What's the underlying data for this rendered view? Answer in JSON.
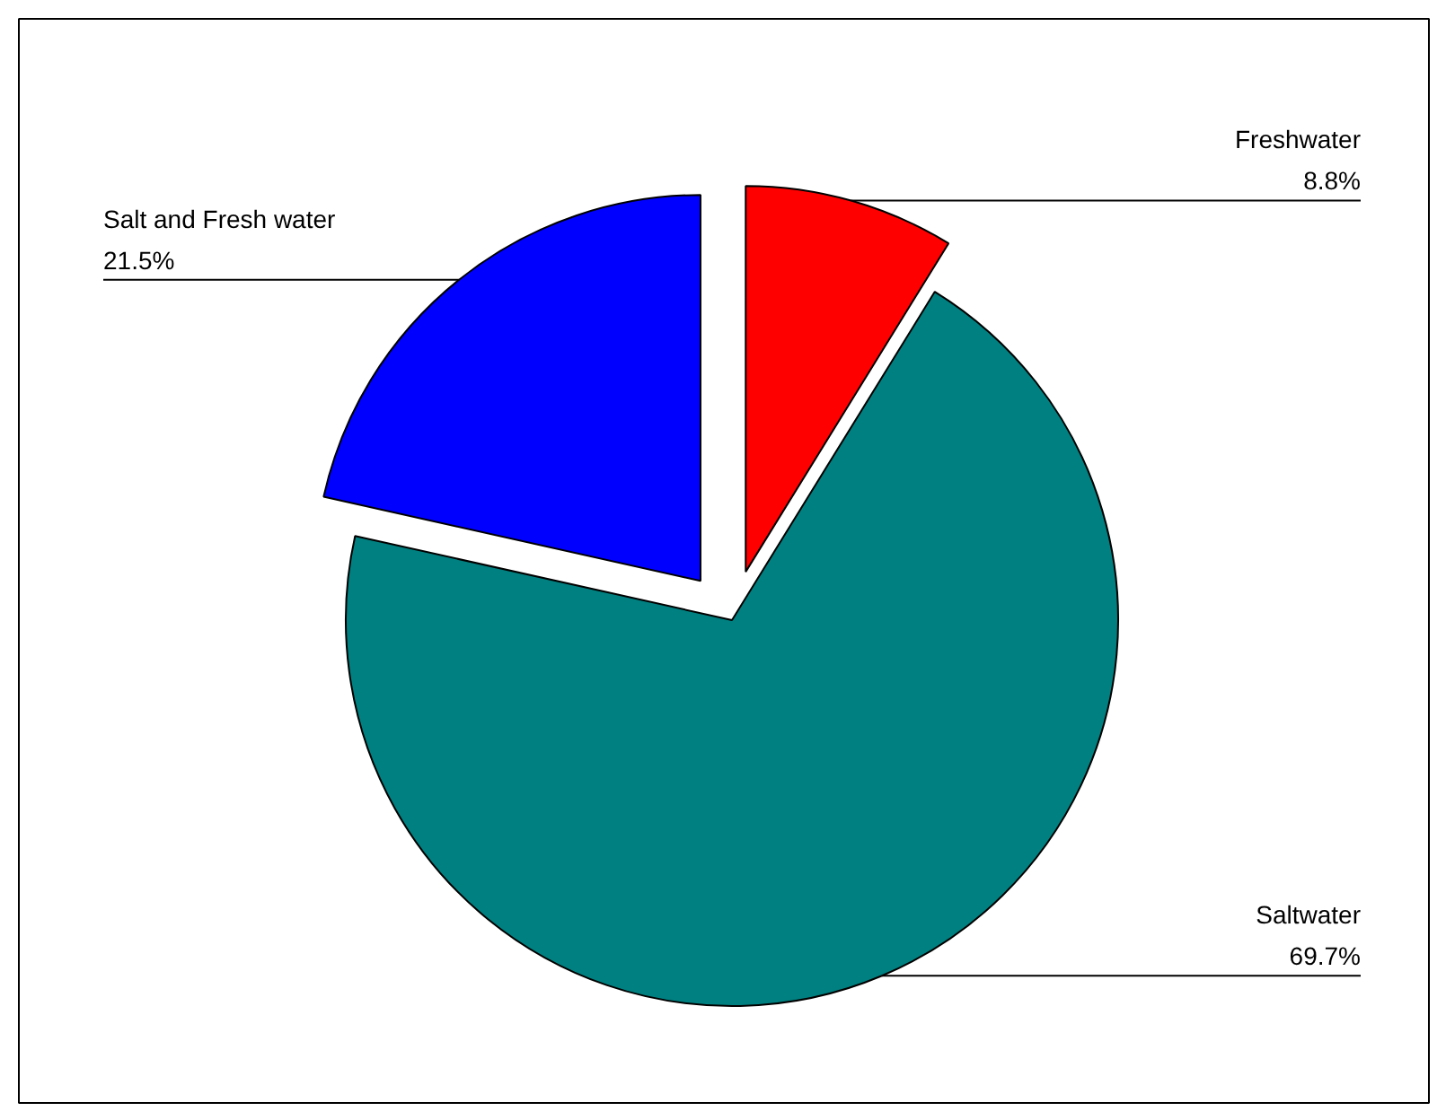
{
  "chart_data": {
    "type": "pie",
    "categories": [
      "Freshwater",
      "Saltwater",
      "Salt and Fresh water"
    ],
    "values": [
      8.8,
      69.7,
      21.5
    ],
    "colors": [
      "#ff0000",
      "#008080",
      "#0000ff"
    ],
    "value_labels": [
      "8.8%",
      "69.7%",
      "21.5%"
    ]
  }
}
